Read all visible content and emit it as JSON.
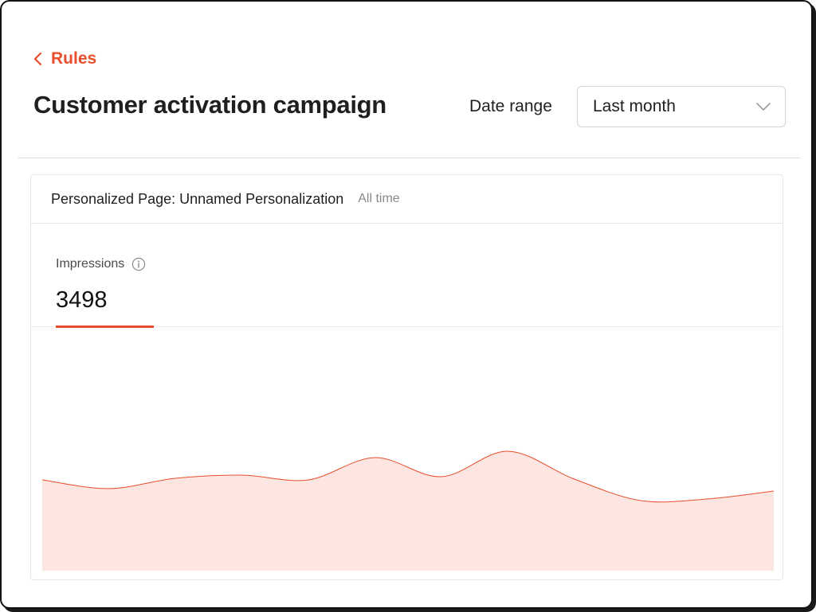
{
  "nav": {
    "back_label": "Rules"
  },
  "header": {
    "title": "Customer activation campaign",
    "date_range_label": "Date range",
    "date_range_value": "Last month"
  },
  "card": {
    "title": "Personalized Page: Unnamed Personalization",
    "subtitle": "All time",
    "metric": {
      "label": "Impressions",
      "value": "3498"
    }
  },
  "chart_data": {
    "type": "area",
    "title": "",
    "xlabel": "",
    "ylabel": "",
    "grid": false,
    "legend": "none",
    "y": [
      114,
      103,
      116,
      120,
      114,
      142,
      118,
      150,
      115,
      88,
      90,
      100
    ],
    "ylim": [
      0,
      177
    ],
    "line_color": "#e84e2c",
    "fill_color": "#fde6e2"
  },
  "colors": {
    "accent": "#e84e2c",
    "area_fill": "#fde6e2"
  }
}
